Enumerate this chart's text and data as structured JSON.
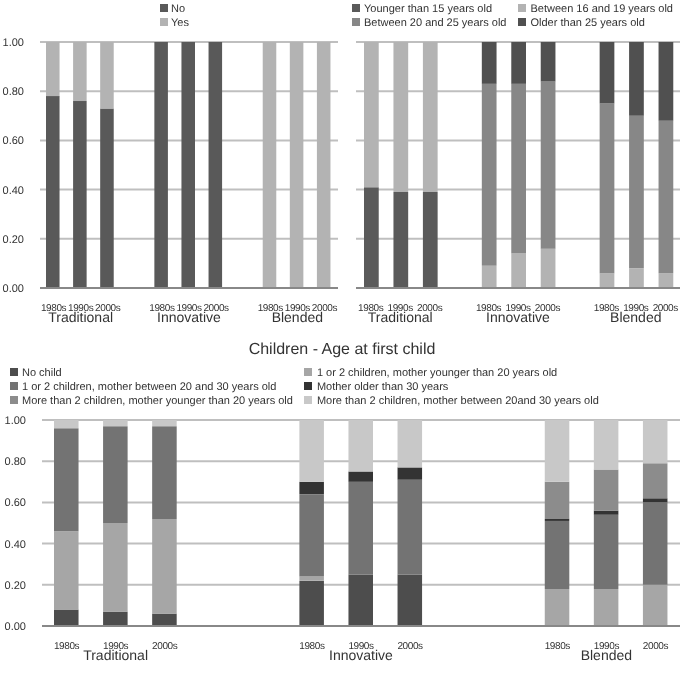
{
  "chart_data": [
    {
      "type": "bar",
      "stacked": true,
      "legend": "top",
      "grid": "y",
      "categories": [
        "1980s",
        "1990s",
        "2000s",
        null,
        "1980s",
        "1990s",
        "2000s",
        null,
        "1980s",
        "1990s",
        "2000s"
      ],
      "annotations": [
        "Traditional",
        "Innovative",
        "Blended"
      ],
      "ylim": [
        0,
        1
      ],
      "yticks": [
        {
          "value": 0,
          "label": "0.00"
        },
        {
          "value": 0.2,
          "label": "0.20"
        },
        {
          "value": 0.4,
          "label": "0.40"
        },
        {
          "value": 0.6,
          "label": "0.60"
        },
        {
          "value": 0.8,
          "label": "0.80"
        },
        {
          "value": 1,
          "label": "1.00"
        }
      ],
      "series": [
        {
          "name": "No",
          "color": "#595959",
          "values": [
            0.78,
            0.76,
            0.73,
            null,
            1,
            1,
            1,
            null,
            0,
            0,
            0
          ]
        },
        {
          "name": "Yes",
          "color": "#b3b3b3",
          "values": [
            0.22,
            0.24,
            0.27,
            null,
            0,
            0,
            0,
            null,
            1,
            1,
            1
          ]
        }
      ]
    },
    {
      "type": "bar",
      "stacked": true,
      "legend": "top",
      "grid": "y",
      "tick_labels": "x",
      "categories": [
        "1980s",
        "1990s",
        "2000s",
        null,
        "1980s",
        "1990s",
        "2000s",
        null,
        "1980s",
        "1990s",
        "2000s"
      ],
      "annotations": [
        "Traditional",
        "Innovative",
        "Blended"
      ],
      "ylim": [
        0,
        1
      ],
      "yticks": [
        0,
        0.2,
        0.4,
        0.6,
        0.8,
        1
      ],
      "series": [
        {
          "name": "Younger than 15 years old",
          "color": "#5a5a5a",
          "values": [
            0.41,
            0.39,
            0.39,
            null,
            0,
            0,
            0,
            null,
            0,
            0,
            0
          ]
        },
        {
          "name": "Between 16 and 19 years old",
          "color": "#b3b3b3",
          "values": [
            0.59,
            0.61,
            0.61,
            null,
            0.09,
            0.14,
            0.16,
            null,
            0.06,
            0.08,
            0.06
          ]
        },
        {
          "name": "Between 20 and 25 years old",
          "color": "#878787",
          "values": [
            0,
            0,
            0,
            null,
            0.74,
            0.69,
            0.68,
            null,
            0.69,
            0.62,
            0.62
          ]
        },
        {
          "name": "Older than 25 years old",
          "color": "#505050",
          "values": [
            0,
            0,
            0,
            null,
            0.17,
            0.17,
            0.16,
            null,
            0.25,
            0.3,
            0.32
          ]
        }
      ]
    },
    {
      "type": "bar",
      "stacked": true,
      "legend": "top",
      "grid": "y",
      "title": "Children - Age at first child",
      "categories": [
        "1980s",
        "1990s",
        "2000s",
        null,
        null,
        "1980s",
        "1990s",
        "2000s",
        null,
        null,
        "1980s",
        "1990s",
        "2000s"
      ],
      "annotations": [
        "Traditional",
        "Innovative",
        "Blended"
      ],
      "ylim": [
        0,
        1
      ],
      "yticks": [
        {
          "value": 0,
          "label": "0.00"
        },
        {
          "value": 0.2,
          "label": "0.20"
        },
        {
          "value": 0.4,
          "label": "0.40"
        },
        {
          "value": 0.6,
          "label": "0.60"
        },
        {
          "value": 0.8,
          "label": "0.80"
        },
        {
          "value": 1,
          "label": "1.00"
        }
      ],
      "series": [
        {
          "name": "No child",
          "color": "#4d4d4d",
          "values": [
            0.08,
            0.07,
            0.06,
            null,
            null,
            0.22,
            0.25,
            0.25,
            null,
            null,
            0,
            0,
            0
          ]
        },
        {
          "name": "1 or 2 children, mother younger than 20 years old",
          "color": "#a6a6a6",
          "values": [
            0.38,
            0.43,
            0.46,
            null,
            null,
            0.02,
            0,
            0,
            null,
            null,
            0.18,
            0.18,
            0.2
          ]
        },
        {
          "name": "1 or 2 children, mother between 20 and 30 years old",
          "color": "#737373",
          "values": [
            0.5,
            0.47,
            0.45,
            null,
            null,
            0.4,
            0.45,
            0.46,
            null,
            null,
            0.33,
            0.36,
            0.4
          ]
        },
        {
          "name": "Mother older than 30 years",
          "color": "#333333",
          "values": [
            0,
            0,
            0,
            null,
            null,
            0.06,
            0.05,
            0.06,
            null,
            null,
            0.01,
            0.02,
            0.02
          ]
        },
        {
          "name": "More than 2 children, mother younger than 20 years old",
          "color": "#8c8c8c",
          "values": [
            0,
            0,
            0,
            null,
            null,
            0,
            0,
            0,
            null,
            null,
            0.18,
            0.2,
            0.17
          ]
        },
        {
          "name": "More than 2 children, mother between 20and 30 years old",
          "color": "#c8c8c8",
          "values": [
            0.04,
            0.03,
            0.03,
            null,
            null,
            0.3,
            0.25,
            0.23,
            null,
            null,
            0.3,
            0.24,
            0.21
          ]
        }
      ]
    }
  ]
}
